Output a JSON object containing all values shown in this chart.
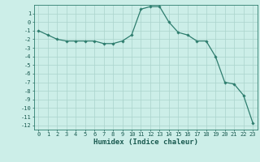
{
  "x": [
    0,
    1,
    2,
    3,
    4,
    5,
    6,
    7,
    8,
    9,
    10,
    11,
    12,
    13,
    14,
    15,
    16,
    17,
    18,
    19,
    20,
    21,
    22,
    23
  ],
  "y": [
    -1,
    -1.5,
    -2,
    -2.2,
    -2.2,
    -2.2,
    -2.2,
    -2.5,
    -2.5,
    -2.2,
    -1.5,
    1.5,
    1.8,
    1.8,
    0,
    -1.2,
    -1.5,
    -2.2,
    -2.2,
    -4,
    -7,
    -7.2,
    -8.5,
    -11.7
  ],
  "line_color": "#2e7d6e",
  "marker": "D",
  "marker_size": 1.8,
  "bg_color": "#cceee8",
  "grid_color": "#aad4cc",
  "xlabel": "Humidex (Indice chaleur)",
  "xlim": [
    -0.5,
    23.5
  ],
  "ylim": [
    -12.5,
    2.0
  ],
  "xticks": [
    0,
    1,
    2,
    3,
    4,
    5,
    6,
    7,
    8,
    9,
    10,
    11,
    12,
    13,
    14,
    15,
    16,
    17,
    18,
    19,
    20,
    21,
    22,
    23
  ],
  "yticks": [
    1,
    0,
    -1,
    -2,
    -3,
    -4,
    -5,
    -6,
    -7,
    -8,
    -9,
    -10,
    -11,
    -12
  ],
  "tick_fontsize": 5.0,
  "xlabel_fontsize": 6.5,
  "line_width": 0.9,
  "tick_color": "#1a5a50",
  "spine_color": "#2e7d6e"
}
